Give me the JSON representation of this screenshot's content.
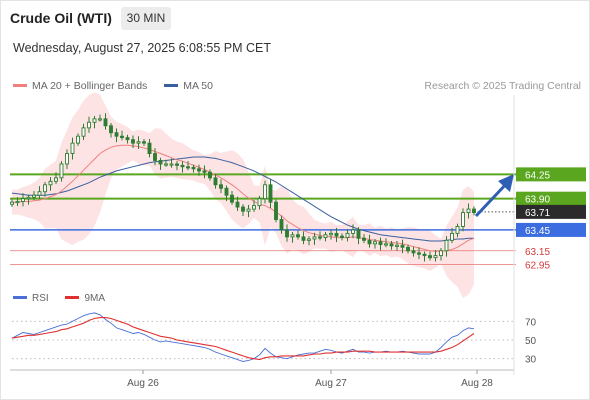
{
  "header": {
    "instrument": "Crude Oil (WTI)",
    "timeframe": "30 MIN",
    "datetime": "Wednesday, August 27, 2025 6:08:55 PM CET"
  },
  "legend": {
    "ma20_label": "MA 20 + Bollinger Bands",
    "ma50_label": "MA 50",
    "credit": "Research © 2025 Trading Central",
    "rsi_label": "RSI",
    "rsi_ma_label": "9MA"
  },
  "colors": {
    "ma20": "#f08080",
    "band_fill": "#fde0e0",
    "ma50": "#3a5f9f",
    "resistance": "#5aa61e",
    "support": "#3c6de0",
    "target_line": "#e57373",
    "current_price": "#2b2b2b",
    "candle": "#2e7d32",
    "rsi": "#4a6fd6",
    "rsi_ma": "#e03030",
    "arrow": "#2f5fb3"
  },
  "chart_data": [
    {
      "type": "candlestick",
      "title": "Crude Oil (WTI)",
      "x_labels": [
        "Aug 26",
        "Aug 27",
        "Aug 28"
      ],
      "ylim": [
        62.7,
        65.35
      ],
      "current_price": 63.71,
      "levels": [
        {
          "kind": "resistance",
          "value": 64.25,
          "label": "64.25"
        },
        {
          "kind": "resistance",
          "value": 63.9,
          "label": "63.90"
        },
        {
          "kind": "current",
          "value": 63.71,
          "label": "63.71"
        },
        {
          "kind": "support",
          "value": 63.45,
          "label": "63.45"
        },
        {
          "kind": "target",
          "value": 63.15,
          "label": "63.15"
        },
        {
          "kind": "target",
          "value": 62.95,
          "label": "62.95"
        }
      ],
      "close": [
        63.85,
        63.86,
        63.9,
        63.92,
        63.95,
        64.0,
        64.1,
        64.15,
        64.2,
        64.4,
        64.55,
        64.7,
        64.8,
        64.92,
        65.0,
        65.05,
        65.05,
        64.95,
        64.85,
        64.8,
        64.78,
        64.75,
        64.7,
        64.72,
        64.7,
        64.55,
        64.45,
        64.4,
        64.4,
        64.4,
        64.38,
        64.36,
        64.35,
        64.33,
        64.3,
        64.28,
        64.2,
        64.1,
        64.05,
        63.95,
        63.85,
        63.78,
        63.72,
        63.75,
        63.8,
        63.9,
        64.1,
        63.85,
        63.6,
        63.45,
        63.35,
        63.38,
        63.35,
        63.3,
        63.32,
        63.35,
        63.34,
        63.38,
        63.4,
        63.36,
        63.34,
        63.4,
        63.45,
        63.33,
        63.3,
        63.25,
        63.28,
        63.24,
        63.25,
        63.22,
        63.23,
        63.2,
        63.15,
        63.12,
        63.1,
        63.08,
        63.05,
        63.08,
        63.15,
        63.3,
        63.4,
        63.5,
        63.7,
        63.75,
        63.7
      ],
      "ma20": [
        63.85,
        63.85,
        63.86,
        63.86,
        63.87,
        63.88,
        63.9,
        63.93,
        63.96,
        64.01,
        64.08,
        64.15,
        64.23,
        64.31,
        64.39,
        64.47,
        64.55,
        64.6,
        64.64,
        64.66,
        64.67,
        64.67,
        64.66,
        64.65,
        64.63,
        64.61,
        64.58,
        64.55,
        64.52,
        64.49,
        64.46,
        64.44,
        64.41,
        64.38,
        64.35,
        64.32,
        64.28,
        64.24,
        64.2,
        64.15,
        64.1,
        64.04,
        63.97,
        63.91,
        63.86,
        63.82,
        63.8,
        63.76,
        63.71,
        63.65,
        63.58,
        63.53,
        63.48,
        63.44,
        63.41,
        63.39,
        63.37,
        63.36,
        63.35,
        63.34,
        63.34,
        63.34,
        63.35,
        63.34,
        63.33,
        63.31,
        63.3,
        63.29,
        63.28,
        63.27,
        63.26,
        63.25,
        63.23,
        63.21,
        63.19,
        63.17,
        63.15,
        63.14,
        63.14,
        63.15,
        63.17,
        63.2,
        63.25,
        63.3,
        63.33
      ],
      "ma50": [
        63.98,
        63.97,
        63.96,
        63.95,
        63.95,
        63.95,
        63.95,
        63.96,
        63.97,
        63.99,
        64.01,
        64.04,
        64.07,
        64.1,
        64.13,
        64.17,
        64.21,
        64.24,
        64.27,
        64.3,
        64.32,
        64.34,
        64.36,
        64.38,
        64.4,
        64.42,
        64.43,
        64.44,
        64.45,
        64.46,
        64.47,
        64.48,
        64.49,
        64.5,
        64.5,
        64.5,
        64.49,
        64.48,
        64.46,
        64.44,
        64.42,
        64.39,
        64.36,
        64.33,
        64.3,
        64.26,
        64.22,
        64.18,
        64.14,
        64.09,
        64.04,
        63.99,
        63.94,
        63.89,
        63.84,
        63.79,
        63.74,
        63.69,
        63.64,
        63.6,
        63.56,
        63.52,
        63.49,
        63.46,
        63.44,
        63.42,
        63.4,
        63.38,
        63.37,
        63.36,
        63.35,
        63.34,
        63.33,
        63.32,
        63.31,
        63.3,
        63.29,
        63.29,
        63.29,
        63.3,
        63.31,
        63.32,
        63.32,
        63.33,
        63.33
      ]
    },
    {
      "type": "line",
      "title": "RSI",
      "series_names": [
        "RSI",
        "9MA"
      ],
      "ylim": [
        20,
        80
      ],
      "yticks": [
        70,
        50,
        30
      ],
      "rsi": [
        52,
        55,
        58,
        57,
        56,
        58,
        60,
        62,
        64,
        66,
        67,
        70,
        73,
        76,
        78,
        79,
        77,
        72,
        68,
        63,
        61,
        59,
        57,
        58,
        56,
        53,
        50,
        48,
        49,
        48,
        47,
        46,
        45,
        44,
        43,
        42,
        40,
        37,
        35,
        33,
        31,
        29,
        27,
        28,
        30,
        34,
        41,
        36,
        32,
        31,
        30,
        32,
        34,
        35,
        36,
        36,
        38,
        40,
        39,
        37,
        36,
        38,
        40,
        37,
        37,
        36,
        37,
        37,
        38,
        37,
        37,
        38,
        37,
        36,
        35,
        35,
        35,
        37,
        42,
        48,
        53,
        55,
        60,
        63,
        62
      ],
      "rsi_ma": [
        52,
        53,
        54,
        55,
        55,
        56,
        57,
        58,
        59,
        61,
        62,
        64,
        66,
        68,
        71,
        73,
        74,
        74,
        73,
        71,
        69,
        67,
        64,
        62,
        60,
        58,
        56,
        54,
        53,
        52,
        50,
        49,
        48,
        47,
        46,
        45,
        44,
        43,
        41,
        39,
        37,
        35,
        33,
        31,
        30,
        29,
        31,
        32,
        32,
        33,
        33,
        33,
        33,
        33,
        34,
        35,
        35,
        36,
        36,
        37,
        37,
        37,
        38,
        38,
        38,
        38,
        37,
        37,
        37,
        37,
        37,
        37,
        37,
        37,
        37,
        37,
        37,
        37,
        38,
        40,
        42,
        45,
        49,
        53,
        57
      ]
    }
  ],
  "price_axis_labels": [
    "64.25",
    "63.90",
    "63.71",
    "63.45",
    "63.15",
    "62.95"
  ],
  "rsi_axis_labels": [
    "70",
    "50",
    "30"
  ]
}
